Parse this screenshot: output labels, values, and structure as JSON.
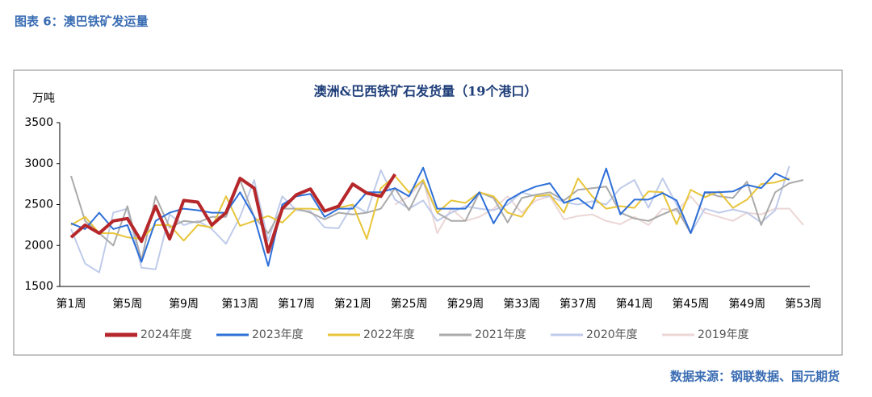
{
  "header": {
    "title": "图表 6：澳巴铁矿发运量"
  },
  "chart_data": {
    "type": "line",
    "title": "澳洲&巴西铁矿石发货量（19个港口）",
    "y_label": "万吨",
    "categories": [
      "第1周",
      null,
      null,
      null,
      "第5周",
      null,
      null,
      null,
      "第9周",
      null,
      null,
      null,
      "第13周",
      null,
      null,
      null,
      "第17周",
      null,
      null,
      null,
      "第21周",
      null,
      null,
      null,
      "第25周",
      null,
      null,
      null,
      "第29周",
      null,
      null,
      null,
      "第33周",
      null,
      null,
      null,
      "第37周",
      null,
      null,
      null,
      "第41周",
      null,
      null,
      null,
      "第45周",
      null,
      null,
      null,
      "第49周",
      null,
      null,
      null,
      "第53周"
    ],
    "ylim": [
      1500,
      3500
    ],
    "yticks": [
      1500,
      2000,
      2500,
      3000,
      3500
    ],
    "series": [
      {
        "name": "2024年度",
        "color": "#b5272a",
        "values": [
          2100,
          2250,
          2150,
          2300,
          2330,
          2050,
          2480,
          2080,
          2550,
          2530,
          2250,
          2400,
          2820,
          2700,
          1920,
          2450,
          2620,
          2690,
          2420,
          2480,
          2750,
          2640,
          2600,
          2870,
          null,
          null,
          null,
          null,
          null,
          null,
          null,
          null,
          null,
          null,
          null,
          null,
          null,
          null,
          null,
          null,
          null,
          null,
          null,
          null,
          null,
          null,
          null,
          null,
          null,
          null,
          null,
          null,
          null
        ]
      },
      {
        "name": "2023年度",
        "color": "#2e6fd8",
        "values": [
          2270,
          2200,
          2400,
          2200,
          2250,
          1800,
          2300,
          2400,
          2450,
          2430,
          2400,
          2400,
          2650,
          2350,
          1750,
          2500,
          2600,
          2630,
          2350,
          2450,
          2450,
          2650,
          2650,
          2700,
          2600,
          2950,
          2450,
          2450,
          2450,
          2650,
          2270,
          2550,
          2650,
          2720,
          2760,
          2520,
          2580,
          2450,
          2940,
          2380,
          2560,
          2560,
          2640,
          2550,
          2150,
          2650,
          2650,
          2660,
          2740,
          2700,
          2880,
          2800,
          null
        ]
      },
      {
        "name": "2022年度",
        "color": "#e8c53a",
        "values": [
          2250,
          2350,
          2150,
          2150,
          2100,
          2080,
          2250,
          2250,
          2060,
          2250,
          2220,
          2600,
          2240,
          2300,
          2360,
          2280,
          2450,
          2450,
          2430,
          2460,
          2500,
          2080,
          2700,
          2850,
          2650,
          2800,
          2400,
          2550,
          2520,
          2650,
          2600,
          2400,
          2350,
          2600,
          2620,
          2400,
          2820,
          2600,
          2450,
          2480,
          2460,
          2660,
          2650,
          2260,
          2680,
          2590,
          2660,
          2460,
          2560,
          2750,
          2770,
          2820,
          null
        ]
      },
      {
        "name": "2021年度",
        "color": "#aaaaaa",
        "values": [
          2850,
          2300,
          2150,
          2000,
          2480,
          1820,
          2600,
          2220,
          2300,
          2280,
          2350,
          2350,
          2800,
          2350,
          2150,
          2450,
          2450,
          2400,
          2320,
          2400,
          2380,
          2400,
          2450,
          2700,
          2430,
          2780,
          2400,
          2300,
          2300,
          2650,
          2580,
          2280,
          2580,
          2620,
          2650,
          2550,
          2680,
          2700,
          2720,
          2400,
          2330,
          2300,
          2380,
          2450,
          2150,
          2650,
          2600,
          2580,
          2780,
          2250,
          2650,
          2760,
          2800
        ]
      },
      {
        "name": "2020年度",
        "color": "#bfcbea",
        "values": [
          2200,
          1780,
          1670,
          2400,
          2450,
          1730,
          1710,
          2380,
          2250,
          2300,
          2200,
          2020,
          2350,
          2800,
          2060,
          2600,
          2430,
          2420,
          2220,
          2210,
          2500,
          2400,
          2920,
          2560,
          2450,
          2550,
          2300,
          2400,
          2480,
          2450,
          2430,
          2500,
          2650,
          2600,
          2600,
          2530,
          2500,
          2540,
          2500,
          2700,
          2800,
          2460,
          2820,
          2500,
          2150,
          2450,
          2400,
          2440,
          2400,
          2280,
          2430,
          2970,
          null
        ]
      },
      {
        "name": "2019年度",
        "color": "#ecd6d6",
        "values": [
          null,
          null,
          null,
          null,
          null,
          null,
          null,
          null,
          null,
          null,
          null,
          null,
          null,
          null,
          null,
          null,
          null,
          null,
          null,
          null,
          null,
          null,
          null,
          2500,
          2600,
          2800,
          2150,
          2450,
          2300,
          2350,
          2450,
          2600,
          2400,
          2550,
          2600,
          2320,
          2360,
          2380,
          2300,
          2260,
          2350,
          2250,
          2450,
          2420,
          2600,
          2400,
          2350,
          2300,
          2400,
          2380,
          2450,
          2450,
          2250
        ]
      }
    ]
  },
  "footer": {
    "source": "数据来源：钢联数据、国元期货"
  }
}
